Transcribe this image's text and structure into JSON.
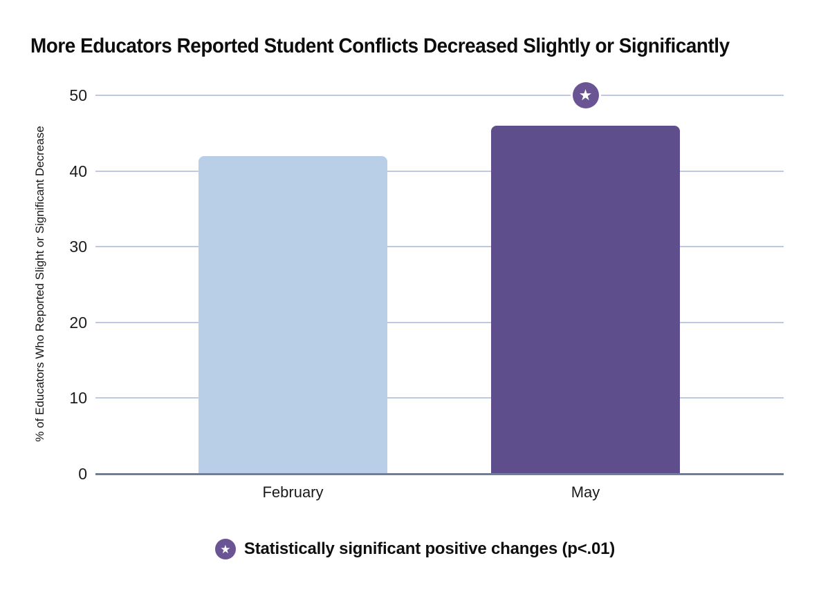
{
  "chart_data": {
    "type": "bar",
    "categories": [
      "February",
      "May"
    ],
    "values": [
      42,
      46
    ],
    "bar_colors": [
      "#B9CFE7",
      "#5F4E8C"
    ],
    "significant": [
      false,
      true
    ],
    "title": "More Educators Reported Student Conflicts Decreased Slightly or Significantly",
    "xlabel": "",
    "ylabel": "% of Educators Who Reported Slight or Significant Decrease",
    "ylim": [
      0,
      50
    ],
    "yticks": [
      0,
      10,
      20,
      30,
      40,
      50
    ],
    "grid": true,
    "legend_position": "bottom"
  },
  "legend": {
    "star_glyph": "★",
    "label": "Statistically significant positive changes (p<.01)"
  },
  "colors": {
    "gridline": "#BDC9E2",
    "axis_line": "#6F7D9C",
    "badge": "#6A5494",
    "bar_february": "#B9CFE7",
    "bar_may": "#5F4E8C",
    "text": "#0D0D0D"
  }
}
